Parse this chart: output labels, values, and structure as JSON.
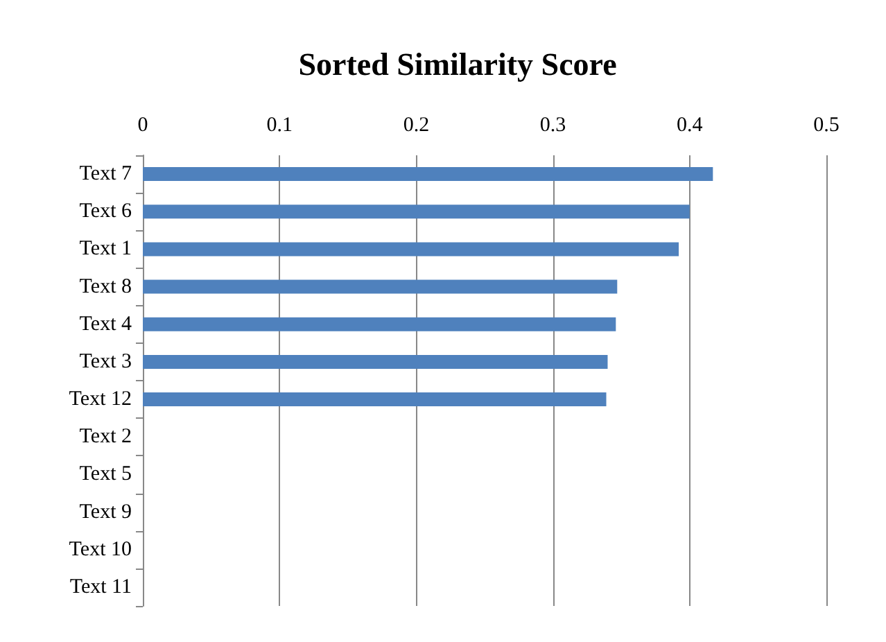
{
  "chart_data": {
    "type": "bar",
    "orientation": "horizontal",
    "title": "Sorted Similarity Score",
    "categories": [
      "Text 7",
      "Text 6",
      "Text 1",
      "Text 8",
      "Text 4",
      "Text 3",
      "Text 12",
      "Text 2",
      "Text 5",
      "Text 9",
      "Text 10",
      "Text 11"
    ],
    "values": [
      0.417,
      0.4,
      0.392,
      0.347,
      0.346,
      0.34,
      0.339,
      0,
      0,
      0,
      0,
      0
    ],
    "color": "#4f81bd",
    "xlim": [
      0,
      0.5
    ],
    "xticks": [
      0,
      0.1,
      0.2,
      0.3,
      0.4,
      0.5
    ],
    "grid": "x"
  }
}
